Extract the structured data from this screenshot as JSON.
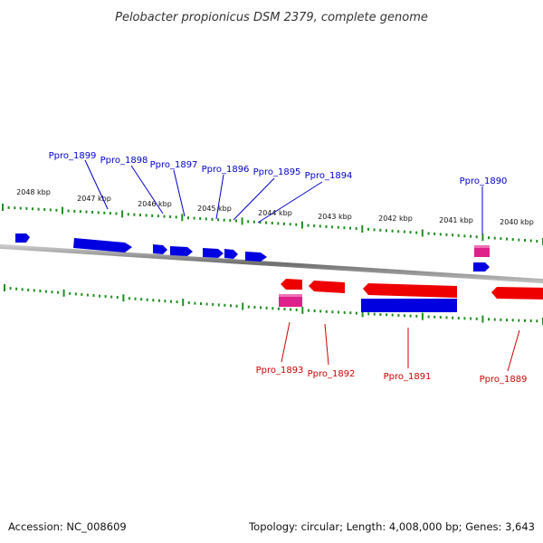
{
  "title": "Pelobacter propionicus DSM 2379, complete genome",
  "footer": {
    "accession": "Accession: NC_008609",
    "summary": "Topology: circular; Length: 4,008,000 bp; Genes: 3,643"
  },
  "colors": {
    "forward_gene": "#0000e0",
    "reverse_gene": "#ee0000",
    "rna_gene": "#e0208a",
    "ticks": "#1f8f1f",
    "backbone": "#808080",
    "forward_label": "#0000cc",
    "reverse_label": "#cc0000"
  },
  "scale": {
    "unit": "kbp",
    "labels": [
      "2048 kbp",
      "2047 kbp",
      "2046 kbp",
      "2045 kbp",
      "2044 kbp",
      "2043 kbp",
      "2042 kbp",
      "2041 kbp",
      "2040 kbp"
    ]
  },
  "genes": {
    "forward": [
      {
        "label": "Ppro_1899"
      },
      {
        "label": "Ppro_1898"
      },
      {
        "label": "Ppro_1897"
      },
      {
        "label": "Ppro_1896"
      },
      {
        "label": "Ppro_1895"
      },
      {
        "label": "Ppro_1894"
      },
      {
        "label": "Ppro_1890"
      }
    ],
    "reverse": [
      {
        "label": "Ppro_1893"
      },
      {
        "label": "Ppro_1892"
      },
      {
        "label": "Ppro_1891"
      },
      {
        "label": "Ppro_1889"
      }
    ]
  }
}
